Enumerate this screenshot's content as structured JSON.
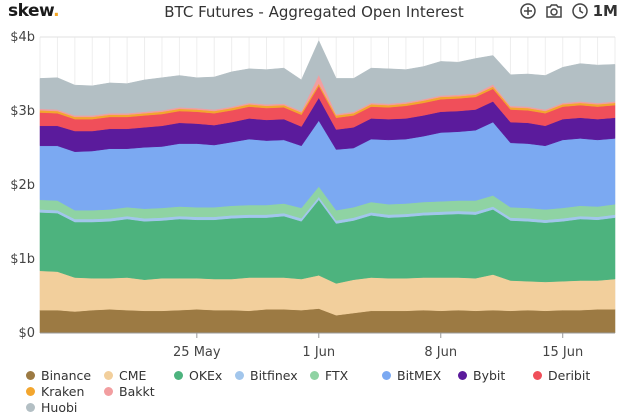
{
  "brand": {
    "name": "skew",
    "dot": "."
  },
  "title": "BTC Futures - Aggregated Open Interest",
  "toolbar": {
    "icons": [
      "zoom-in-icon",
      "camera-icon",
      "clock-icon"
    ],
    "range": "1M"
  },
  "chart_data": {
    "type": "area",
    "stacked": true,
    "title": "BTC Futures - Aggregated Open Interest",
    "x": [
      "May 16",
      "May 17",
      "May 18",
      "May 19",
      "May 20",
      "May 21",
      "May 22",
      "May 23",
      "May 24",
      "May 25",
      "May 26",
      "May 27",
      "May 28",
      "May 29",
      "May 30",
      "May 31",
      "Jun 1",
      "Jun 2",
      "Jun 3",
      "Jun 4",
      "Jun 5",
      "Jun 6",
      "Jun 7",
      "Jun 8",
      "Jun 9",
      "Jun 10",
      "Jun 11",
      "Jun 12",
      "Jun 13",
      "Jun 14",
      "Jun 15",
      "Jun 16",
      "Jun 17",
      "Jun 18"
    ],
    "x_ticks": [
      "25 May",
      "1 Jun",
      "8 Jun",
      "15 Jun"
    ],
    "y_ticks": [
      "$0",
      "$1b",
      "$2b",
      "$3b",
      "$4b"
    ],
    "ylim": [
      0,
      4
    ],
    "y_unit": "USD billions",
    "grid": true,
    "legend_position": "bottom",
    "series": [
      {
        "name": "Binance",
        "color": "#9c7a43",
        "values": [
          0.31,
          0.31,
          0.29,
          0.31,
          0.32,
          0.31,
          0.3,
          0.3,
          0.31,
          0.32,
          0.31,
          0.31,
          0.3,
          0.32,
          0.32,
          0.31,
          0.33,
          0.24,
          0.27,
          0.3,
          0.3,
          0.3,
          0.31,
          0.3,
          0.31,
          0.3,
          0.31,
          0.3,
          0.31,
          0.3,
          0.31,
          0.31,
          0.32,
          0.32
        ]
      },
      {
        "name": "CME",
        "color": "#f2cf9c",
        "values": [
          0.53,
          0.52,
          0.46,
          0.43,
          0.42,
          0.44,
          0.42,
          0.44,
          0.43,
          0.42,
          0.42,
          0.42,
          0.45,
          0.43,
          0.43,
          0.42,
          0.45,
          0.43,
          0.45,
          0.45,
          0.44,
          0.44,
          0.44,
          0.45,
          0.44,
          0.44,
          0.48,
          0.41,
          0.39,
          0.39,
          0.39,
          0.4,
          0.39,
          0.41
        ]
      },
      {
        "name": "OKEx",
        "color": "#4db37e",
        "values": [
          0.79,
          0.79,
          0.75,
          0.76,
          0.77,
          0.79,
          0.79,
          0.78,
          0.8,
          0.79,
          0.8,
          0.82,
          0.81,
          0.81,
          0.83,
          0.78,
          1.02,
          0.81,
          0.8,
          0.84,
          0.82,
          0.83,
          0.84,
          0.85,
          0.86,
          0.86,
          0.88,
          0.81,
          0.81,
          0.8,
          0.81,
          0.83,
          0.82,
          0.83
        ]
      },
      {
        "name": "Bitfinex",
        "color": "#a2c6ec",
        "values": [
          0.04,
          0.04,
          0.04,
          0.04,
          0.04,
          0.04,
          0.04,
          0.04,
          0.04,
          0.04,
          0.04,
          0.04,
          0.04,
          0.04,
          0.04,
          0.04,
          0.04,
          0.04,
          0.04,
          0.04,
          0.04,
          0.04,
          0.04,
          0.04,
          0.04,
          0.04,
          0.04,
          0.04,
          0.04,
          0.04,
          0.04,
          0.04,
          0.04,
          0.04
        ]
      },
      {
        "name": "FTX",
        "color": "#8fd3a3",
        "values": [
          0.13,
          0.13,
          0.12,
          0.12,
          0.12,
          0.12,
          0.13,
          0.13,
          0.13,
          0.13,
          0.13,
          0.13,
          0.13,
          0.13,
          0.13,
          0.14,
          0.14,
          0.14,
          0.14,
          0.14,
          0.14,
          0.14,
          0.14,
          0.14,
          0.14,
          0.15,
          0.15,
          0.14,
          0.14,
          0.14,
          0.14,
          0.14,
          0.14,
          0.14
        ]
      },
      {
        "name": "BitMEX",
        "color": "#7ba9f2",
        "values": [
          0.73,
          0.74,
          0.79,
          0.8,
          0.82,
          0.79,
          0.83,
          0.83,
          0.85,
          0.86,
          0.84,
          0.86,
          0.89,
          0.87,
          0.86,
          0.84,
          0.89,
          0.82,
          0.8,
          0.85,
          0.87,
          0.87,
          0.89,
          0.93,
          0.93,
          0.95,
          0.99,
          0.87,
          0.87,
          0.86,
          0.92,
          0.91,
          0.9,
          0.89
        ]
      },
      {
        "name": "Bybit",
        "color": "#5b1b9c",
        "values": [
          0.27,
          0.27,
          0.28,
          0.27,
          0.27,
          0.27,
          0.27,
          0.28,
          0.28,
          0.27,
          0.27,
          0.27,
          0.28,
          0.28,
          0.28,
          0.26,
          0.31,
          0.27,
          0.28,
          0.28,
          0.28,
          0.28,
          0.28,
          0.28,
          0.28,
          0.28,
          0.28,
          0.28,
          0.28,
          0.27,
          0.28,
          0.28,
          0.28,
          0.28
        ]
      },
      {
        "name": "Deribit",
        "color": "#f04f5a",
        "values": [
          0.18,
          0.17,
          0.16,
          0.16,
          0.16,
          0.16,
          0.16,
          0.16,
          0.16,
          0.16,
          0.16,
          0.16,
          0.16,
          0.16,
          0.16,
          0.16,
          0.16,
          0.16,
          0.16,
          0.16,
          0.16,
          0.17,
          0.17,
          0.17,
          0.17,
          0.17,
          0.17,
          0.17,
          0.17,
          0.17,
          0.17,
          0.17,
          0.17,
          0.17
        ]
      },
      {
        "name": "Kraken",
        "color": "#f3a62e",
        "values": [
          0.03,
          0.03,
          0.03,
          0.03,
          0.03,
          0.03,
          0.03,
          0.03,
          0.03,
          0.03,
          0.03,
          0.03,
          0.03,
          0.03,
          0.03,
          0.03,
          0.03,
          0.03,
          0.03,
          0.03,
          0.03,
          0.03,
          0.03,
          0.03,
          0.03,
          0.03,
          0.03,
          0.03,
          0.03,
          0.03,
          0.03,
          0.03,
          0.03,
          0.03
        ]
      },
      {
        "name": "Bakkt",
        "color": "#f29ea0",
        "values": [
          0.02,
          0.02,
          0.02,
          0.02,
          0.02,
          0.02,
          0.02,
          0.02,
          0.02,
          0.02,
          0.02,
          0.02,
          0.02,
          0.02,
          0.02,
          0.02,
          0.12,
          0.02,
          0.02,
          0.02,
          0.02,
          0.02,
          0.02,
          0.02,
          0.02,
          0.02,
          0.03,
          0.02,
          0.02,
          0.02,
          0.02,
          0.02,
          0.02,
          0.02
        ]
      },
      {
        "name": "Huobi",
        "color": "#b3bfc4",
        "values": [
          0.41,
          0.43,
          0.41,
          0.4,
          0.41,
          0.4,
          0.43,
          0.44,
          0.43,
          0.41,
          0.44,
          0.47,
          0.46,
          0.47,
          0.48,
          0.42,
          0.46,
          0.48,
          0.45,
          0.47,
          0.47,
          0.44,
          0.44,
          0.46,
          0.44,
          0.47,
          0.39,
          0.42,
          0.44,
          0.46,
          0.48,
          0.51,
          0.51,
          0.5
        ]
      }
    ]
  }
}
